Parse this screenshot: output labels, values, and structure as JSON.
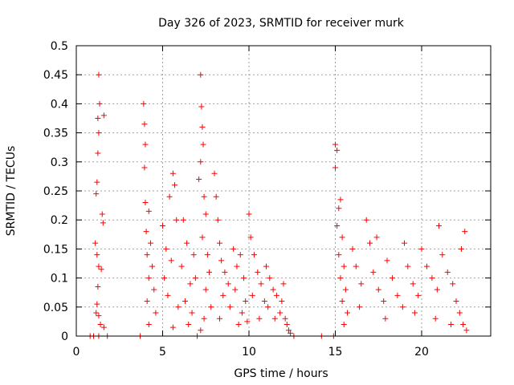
{
  "chart_data": {
    "type": "scatter",
    "title": "Day 326 of 2023, SRMTID for receiver murk",
    "xlabel": "GPS time / hours",
    "ylabel": "SRMTID / TECUs",
    "xlim": [
      0,
      24
    ],
    "ylim": [
      0,
      0.5
    ],
    "x_ticks": [
      0,
      5,
      10,
      15,
      20
    ],
    "x_tick_labels": [
      "0",
      "5",
      "10",
      "15",
      "20"
    ],
    "y_ticks": [
      0,
      0.05,
      0.1,
      0.15,
      0.2,
      0.25,
      0.3,
      0.35,
      0.4,
      0.45,
      0.5
    ],
    "y_tick_labels": [
      "0",
      "0.05",
      "0.1",
      "0.15",
      "0.2",
      "0.25",
      "0.3",
      "0.35",
      "0.4",
      "0.45",
      "0.5"
    ],
    "grid": true,
    "marker": "plus",
    "color": "#ff0000",
    "series": [
      {
        "name": "SRMTID",
        "points": [
          [
            1.3,
            0.45
          ],
          [
            1.35,
            0.4
          ],
          [
            1.25,
            0.375
          ],
          [
            1.3,
            0.35
          ],
          [
            1.25,
            0.315
          ],
          [
            1.6,
            0.38
          ],
          [
            1.2,
            0.265
          ],
          [
            1.15,
            0.245
          ],
          [
            1.5,
            0.21
          ],
          [
            1.55,
            0.195
          ],
          [
            1.1,
            0.16
          ],
          [
            1.2,
            0.14
          ],
          [
            1.3,
            0.12
          ],
          [
            1.45,
            0.115
          ],
          [
            1.25,
            0.085
          ],
          [
            1.2,
            0.055
          ],
          [
            1.15,
            0.04
          ],
          [
            1.3,
            0.035
          ],
          [
            1.4,
            0.02
          ],
          [
            1.6,
            0.015
          ],
          [
            3.9,
            0.4
          ],
          [
            3.95,
            0.365
          ],
          [
            4.0,
            0.33
          ],
          [
            3.95,
            0.29
          ],
          [
            4.0,
            0.23
          ],
          [
            4.2,
            0.215
          ],
          [
            4.05,
            0.18
          ],
          [
            4.3,
            0.16
          ],
          [
            4.1,
            0.14
          ],
          [
            4.4,
            0.12
          ],
          [
            4.2,
            0.1
          ],
          [
            4.5,
            0.08
          ],
          [
            4.1,
            0.06
          ],
          [
            4.6,
            0.04
          ],
          [
            4.2,
            0.02
          ],
          [
            5.0,
            0.19
          ],
          [
            5.2,
            0.15
          ],
          [
            5.4,
            0.24
          ],
          [
            5.6,
            0.28
          ],
          [
            5.7,
            0.26
          ],
          [
            5.8,
            0.2
          ],
          [
            5.5,
            0.13
          ],
          [
            5.1,
            0.1
          ],
          [
            5.3,
            0.07
          ],
          [
            5.9,
            0.05
          ],
          [
            6.2,
            0.2
          ],
          [
            6.4,
            0.16
          ],
          [
            6.1,
            0.12
          ],
          [
            6.6,
            0.09
          ],
          [
            6.3,
            0.06
          ],
          [
            6.8,
            0.14
          ],
          [
            6.9,
            0.1
          ],
          [
            6.7,
            0.04
          ],
          [
            6.5,
            0.02
          ],
          [
            5.6,
            0.015
          ],
          [
            7.2,
            0.45
          ],
          [
            7.25,
            0.395
          ],
          [
            7.3,
            0.36
          ],
          [
            7.35,
            0.33
          ],
          [
            7.2,
            0.3
          ],
          [
            7.1,
            0.27
          ],
          [
            7.4,
            0.24
          ],
          [
            7.5,
            0.21
          ],
          [
            7.3,
            0.17
          ],
          [
            7.6,
            0.14
          ],
          [
            7.7,
            0.11
          ],
          [
            7.5,
            0.08
          ],
          [
            7.8,
            0.05
          ],
          [
            7.4,
            0.03
          ],
          [
            7.2,
            0.01
          ],
          [
            8.0,
            0.28
          ],
          [
            8.1,
            0.24
          ],
          [
            8.2,
            0.2
          ],
          [
            8.3,
            0.16
          ],
          [
            8.4,
            0.13
          ],
          [
            8.6,
            0.11
          ],
          [
            8.8,
            0.09
          ],
          [
            8.5,
            0.07
          ],
          [
            8.9,
            0.05
          ],
          [
            8.3,
            0.03
          ],
          [
            9.1,
            0.15
          ],
          [
            9.3,
            0.12
          ],
          [
            9.5,
            0.14
          ],
          [
            9.7,
            0.1
          ],
          [
            9.2,
            0.08
          ],
          [
            9.8,
            0.06
          ],
          [
            9.6,
            0.04
          ],
          [
            9.4,
            0.02
          ],
          [
            10.0,
            0.21
          ],
          [
            10.1,
            0.17
          ],
          [
            10.3,
            0.14
          ],
          [
            10.5,
            0.11
          ],
          [
            10.7,
            0.09
          ],
          [
            10.2,
            0.07
          ],
          [
            10.9,
            0.06
          ],
          [
            11.0,
            0.12
          ],
          [
            11.2,
            0.1
          ],
          [
            11.4,
            0.08
          ],
          [
            11.6,
            0.07
          ],
          [
            11.1,
            0.05
          ],
          [
            11.8,
            0.04
          ],
          [
            11.9,
            0.06
          ],
          [
            12.0,
            0.09
          ],
          [
            12.1,
            0.03
          ],
          [
            12.2,
            0.02
          ],
          [
            12.3,
            0.01
          ],
          [
            11.5,
            0.03
          ],
          [
            10.6,
            0.03
          ],
          [
            9.9,
            0.025
          ],
          [
            12.4,
            0.005
          ],
          [
            15.0,
            0.33
          ],
          [
            15.1,
            0.32
          ],
          [
            15.0,
            0.29
          ],
          [
            15.3,
            0.235
          ],
          [
            15.2,
            0.22
          ],
          [
            15.1,
            0.19
          ],
          [
            15.4,
            0.17
          ],
          [
            15.2,
            0.14
          ],
          [
            15.5,
            0.12
          ],
          [
            15.3,
            0.1
          ],
          [
            15.6,
            0.08
          ],
          [
            15.4,
            0.06
          ],
          [
            15.7,
            0.04
          ],
          [
            15.5,
            0.02
          ],
          [
            16.0,
            0.15
          ],
          [
            16.2,
            0.12
          ],
          [
            16.5,
            0.09
          ],
          [
            16.8,
            0.2
          ],
          [
            17.0,
            0.16
          ],
          [
            17.2,
            0.11
          ],
          [
            17.5,
            0.08
          ],
          [
            17.8,
            0.06
          ],
          [
            18.0,
            0.13
          ],
          [
            18.3,
            0.1
          ],
          [
            18.6,
            0.07
          ],
          [
            18.9,
            0.05
          ],
          [
            19.2,
            0.12
          ],
          [
            19.5,
            0.09
          ],
          [
            19.8,
            0.07
          ],
          [
            20.0,
            0.15
          ],
          [
            20.3,
            0.12
          ],
          [
            20.6,
            0.1
          ],
          [
            20.9,
            0.08
          ],
          [
            21.2,
            0.14
          ],
          [
            21.5,
            0.11
          ],
          [
            21.8,
            0.09
          ],
          [
            22.0,
            0.06
          ],
          [
            22.2,
            0.04
          ],
          [
            22.4,
            0.02
          ],
          [
            22.6,
            0.01
          ],
          [
            22.5,
            0.18
          ],
          [
            22.3,
            0.15
          ],
          [
            21.0,
            0.19
          ],
          [
            19.0,
            0.16
          ],
          [
            17.4,
            0.17
          ],
          [
            16.4,
            0.05
          ],
          [
            17.9,
            0.03
          ],
          [
            19.6,
            0.04
          ],
          [
            20.8,
            0.03
          ],
          [
            21.7,
            0.02
          ],
          [
            0.8,
            0.0
          ],
          [
            1.0,
            0.0
          ],
          [
            1.3,
            0.0
          ],
          [
            1.8,
            0.0
          ],
          [
            3.7,
            0.0
          ],
          [
            7.0,
            0.0
          ],
          [
            12.6,
            0.0
          ],
          [
            14.2,
            0.0
          ],
          [
            14.9,
            0.0
          ]
        ]
      }
    ]
  }
}
